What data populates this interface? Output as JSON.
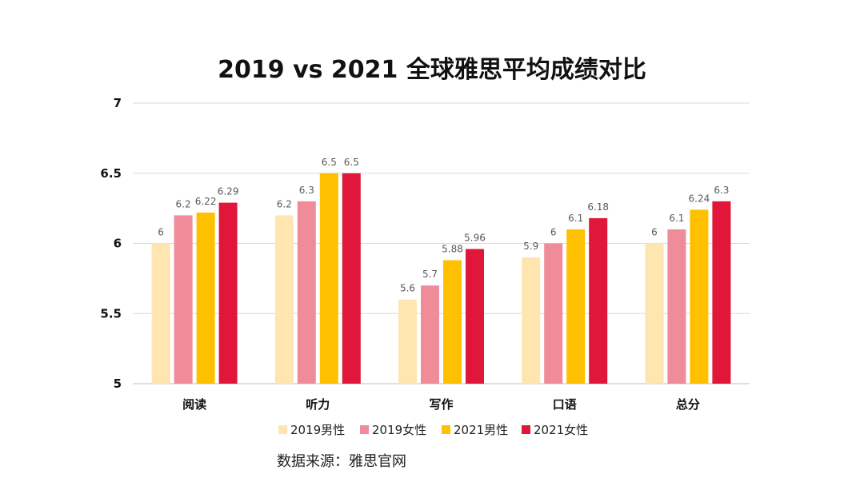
{
  "chart_data": {
    "type": "bar",
    "title": "2019 vs 2021 全球雅思平均成绩对比",
    "categories": [
      "阅读",
      "听力",
      "写作",
      "口语",
      "总分"
    ],
    "series": [
      {
        "name": "2019男性",
        "color": "#FFE5B0",
        "values": [
          6,
          6.2,
          5.6,
          5.9,
          6
        ]
      },
      {
        "name": "2019女性",
        "color": "#F08B9A",
        "values": [
          6.2,
          6.3,
          5.7,
          6,
          6.1
        ]
      },
      {
        "name": "2021男性",
        "color": "#FFC000",
        "values": [
          6.22,
          6.5,
          5.88,
          6.1,
          6.24
        ]
      },
      {
        "name": "2021女性",
        "color": "#E0163A",
        "values": [
          6.29,
          6.5,
          5.96,
          6.18,
          6.3
        ]
      }
    ],
    "ylim": [
      5,
      7
    ],
    "yticks": [
      5,
      5.5,
      6,
      6.5,
      7
    ],
    "ytick_labels": [
      "5",
      "5.5",
      "6",
      "6.5",
      "7"
    ],
    "grid": true,
    "legend": "bottom",
    "data_labels": [
      [
        "6",
        "6.2",
        "5.6",
        "5.9",
        "6"
      ],
      [
        "6.2",
        "6.3",
        "5.7",
        "6",
        "6.1"
      ],
      [
        "6.22",
        "6.5",
        "5.88",
        "6.1",
        "6.24"
      ],
      [
        "6.29",
        "6.5",
        "5.96",
        "6.18",
        "6.3"
      ]
    ]
  },
  "source": "数据来源：雅思官网"
}
